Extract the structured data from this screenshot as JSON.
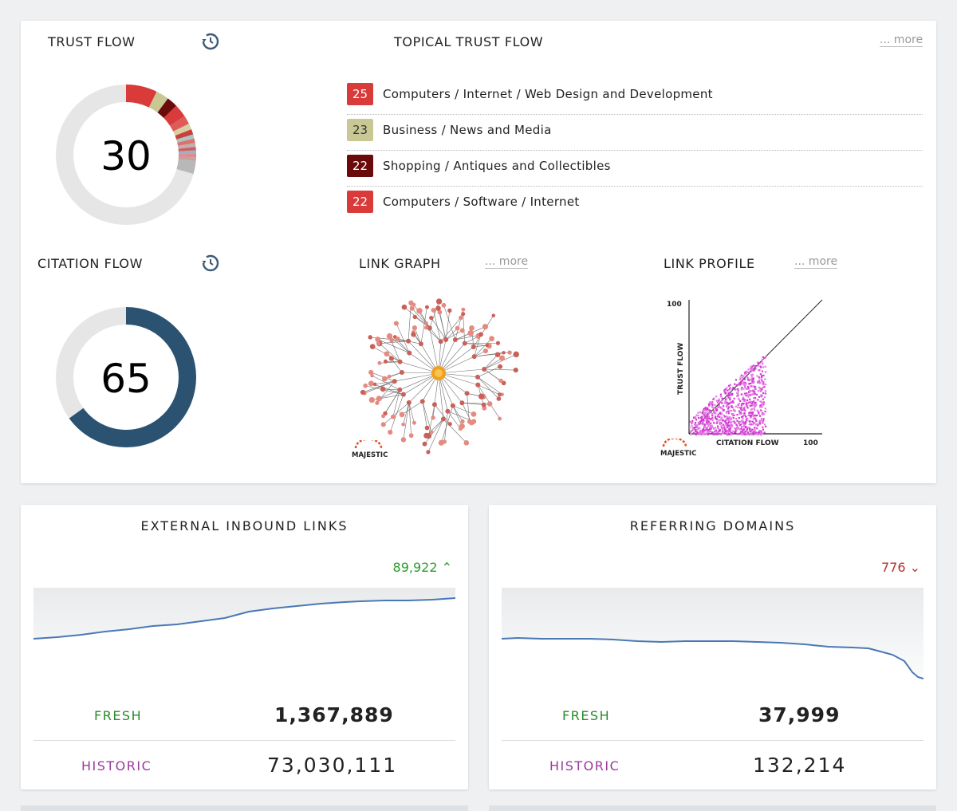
{
  "trust_flow": {
    "title": "TRUST FLOW",
    "value": "30",
    "history_icon": "history-icon"
  },
  "topical": {
    "title": "TOPICAL TRUST FLOW",
    "more": "... more",
    "topics": [
      {
        "score": "25",
        "label": "Computers / Internet / Web Design and Development",
        "color": "#d93a3a"
      },
      {
        "score": "23",
        "label": "Business / News and Media",
        "color": "#c9c895"
      },
      {
        "score": "22",
        "label": "Shopping / Antiques and Collectibles",
        "color": "#6b0a0a"
      },
      {
        "score": "22",
        "label": "Computers / Software / Internet",
        "color": "#d93a3a"
      }
    ]
  },
  "citation_flow": {
    "title": "CITATION FLOW",
    "value": "65",
    "history_icon": "history-icon",
    "color": "#2c5272"
  },
  "link_graph": {
    "title": "LINK GRAPH",
    "more": "... more",
    "logo": "MAJESTIC"
  },
  "link_profile": {
    "title": "LINK PROFILE",
    "more": "... more",
    "y_axis_label": "TRUST FLOW",
    "x_axis_label": "CITATION FLOW",
    "y_max_label": "100",
    "x_max_label": "100",
    "logo": "MAJESTIC"
  },
  "external_links": {
    "title": "EXTERNAL INBOUND LINKS",
    "delta": "89,922",
    "delta_direction": "up",
    "fresh_label": "FRESH",
    "fresh_value": "1,367,889",
    "historic_label": "HISTORIC",
    "historic_value": "73,030,111"
  },
  "referring_domains": {
    "title": "REFERRING DOMAINS",
    "delta": "776",
    "delta_direction": "down",
    "fresh_label": "FRESH",
    "fresh_value": "37,999",
    "historic_label": "HISTORIC",
    "historic_value": "132,214"
  },
  "colors": {
    "fresh": "#2a8a2a",
    "historic": "#9b3a9b",
    "up": "#2a9d2a",
    "down": "#b73030",
    "line": "#4a78b5"
  }
}
